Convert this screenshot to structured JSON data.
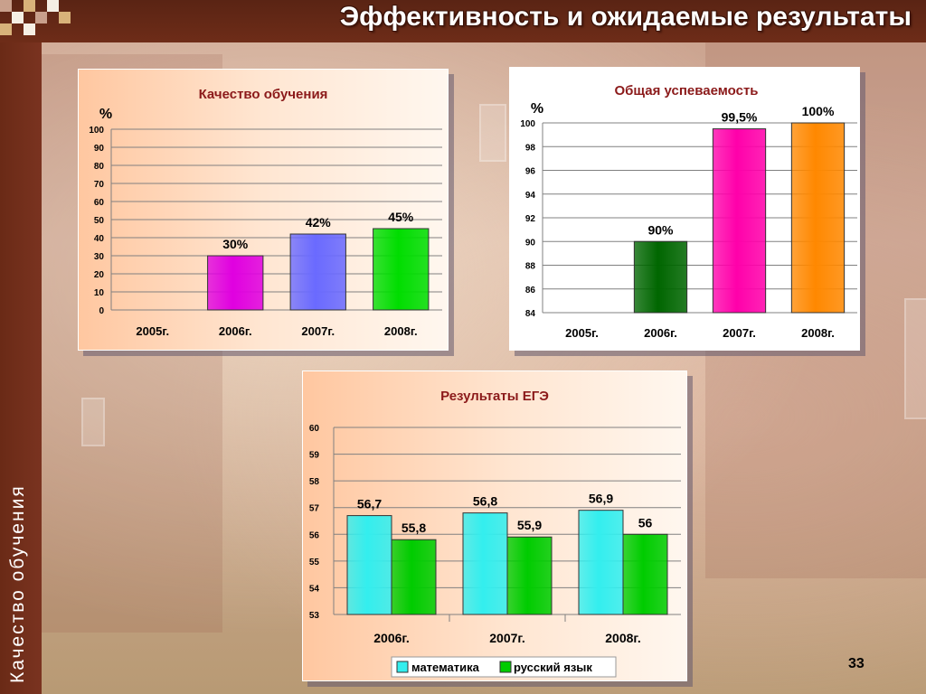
{
  "header": {
    "title": "Эффективность и ожидаемые результаты"
  },
  "sidebar": {
    "label": "Качество обучения"
  },
  "footer": {
    "page_number": "33"
  },
  "colors": {
    "title_bar": "#6e2c18",
    "quality_title": "#8b1a1a",
    "other_titles": "#8b1a1a"
  },
  "chart_data": [
    {
      "id": "quality",
      "type": "bar",
      "title": "Качество обучения",
      "ylabel": "%",
      "categories": [
        "2005г.",
        "2006г.",
        "2007г.",
        "2008г."
      ],
      "values": [
        null,
        30,
        42,
        45
      ],
      "data_labels": [
        "",
        "30%",
        "42%",
        "45%"
      ],
      "bar_colors": [
        "",
        "#e000e0",
        "#6a6aff",
        "#00dd00"
      ],
      "ylim": [
        0,
        100
      ],
      "yticks": [
        0,
        10,
        20,
        30,
        40,
        50,
        60,
        70,
        80,
        90,
        100
      ],
      "grid": true
    },
    {
      "id": "progress",
      "type": "bar",
      "title": "Общая успеваемость",
      "ylabel": "%",
      "categories": [
        "2005г.",
        "2006г.",
        "2007г.",
        "2008г."
      ],
      "values": [
        null,
        90,
        99.5,
        100
      ],
      "data_labels": [
        "",
        "90%",
        "99,5%",
        "100%"
      ],
      "bar_colors": [
        "",
        "#006600",
        "#ff00aa",
        "#ff8800"
      ],
      "ylim": [
        84,
        100
      ],
      "yticks": [
        84,
        86,
        88,
        90,
        92,
        94,
        96,
        98,
        100
      ],
      "grid": true
    },
    {
      "id": "ege",
      "type": "bar",
      "title": "Результаты ЕГЭ",
      "categories": [
        "2006г.",
        "2007г.",
        "2008г."
      ],
      "series": [
        {
          "name": "математика",
          "values": [
            56.7,
            56.8,
            56.9
          ],
          "data_labels": [
            "56,7",
            "56,8",
            "56,9"
          ],
          "color": "#33eeee"
        },
        {
          "name": "русский язык",
          "values": [
            55.8,
            55.9,
            56
          ],
          "data_labels": [
            "55,8",
            "55,9",
            "56"
          ],
          "color": "#00cc00"
        }
      ],
      "ylim": [
        53,
        60
      ],
      "yticks": [
        53,
        54,
        55,
        56,
        57,
        58,
        59,
        60
      ],
      "legend": "bottom",
      "grid": true
    }
  ]
}
